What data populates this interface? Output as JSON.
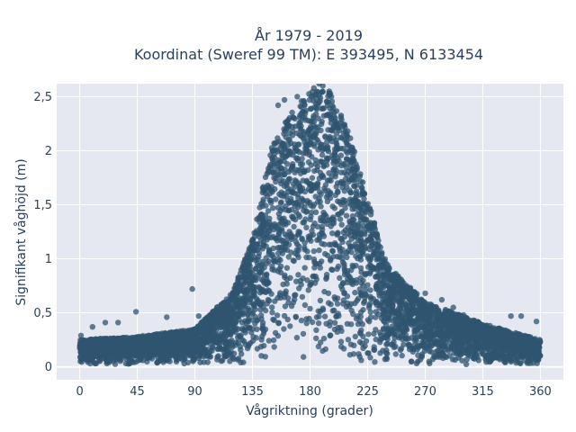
{
  "chart_data": {
    "type": "scatter",
    "title_line1": "År 1979 - 2019",
    "title_line2": "Koordinat (Sweref 99 TM): E 393495, N 6133454",
    "xlabel": "Vågriktning (grader)",
    "ylabel": "Signifikant våghöjd (m)",
    "xlim": [
      -18,
      378
    ],
    "ylim": [
      -0.12,
      2.62
    ],
    "x_ticks": [
      0,
      45,
      90,
      135,
      180,
      225,
      270,
      315,
      360
    ],
    "x_tick_labels": [
      "0",
      "45",
      "90",
      "135",
      "180",
      "225",
      "270",
      "315",
      "360"
    ],
    "y_ticks": [
      0,
      0.5,
      1,
      1.5,
      2,
      2.5
    ],
    "y_tick_labels": [
      "0",
      "0,5",
      "1",
      "1,5",
      "2",
      "2,5"
    ],
    "grid": true,
    "marker_color": "#2f5470",
    "plot_background": "#e5e8f1",
    "envelope": {
      "direction": [
        0,
        45,
        90,
        120,
        135,
        150,
        165,
        180,
        195,
        210,
        225,
        240,
        270,
        315,
        360
      ],
      "max_height": [
        0.25,
        0.28,
        0.35,
        0.7,
        1.2,
        2.05,
        2.35,
        2.55,
        2.55,
        2.2,
        1.55,
        0.95,
        0.6,
        0.4,
        0.25
      ]
    },
    "outliers": [
      {
        "x": 1,
        "y": 0.29
      },
      {
        "x": 10,
        "y": 0.37
      },
      {
        "x": 20,
        "y": 0.41
      },
      {
        "x": 30,
        "y": 0.41
      },
      {
        "x": 44,
        "y": 0.51
      },
      {
        "x": 68,
        "y": 0.46
      },
      {
        "x": 88,
        "y": 0.72
      },
      {
        "x": 93,
        "y": 0.47
      },
      {
        "x": 155,
        "y": 2.42
      },
      {
        "x": 160,
        "y": 2.47
      },
      {
        "x": 170,
        "y": 2.5
      },
      {
        "x": 175,
        "y": 2.46
      },
      {
        "x": 183,
        "y": 2.58
      },
      {
        "x": 187,
        "y": 2.62
      },
      {
        "x": 190,
        "y": 2.6
      },
      {
        "x": 195,
        "y": 2.55
      },
      {
        "x": 270,
        "y": 0.68
      },
      {
        "x": 283,
        "y": 0.62
      },
      {
        "x": 292,
        "y": 0.55
      },
      {
        "x": 300,
        "y": 0.48
      },
      {
        "x": 337,
        "y": 0.47
      },
      {
        "x": 345,
        "y": 0.47
      },
      {
        "x": 357,
        "y": 0.42
      }
    ]
  }
}
